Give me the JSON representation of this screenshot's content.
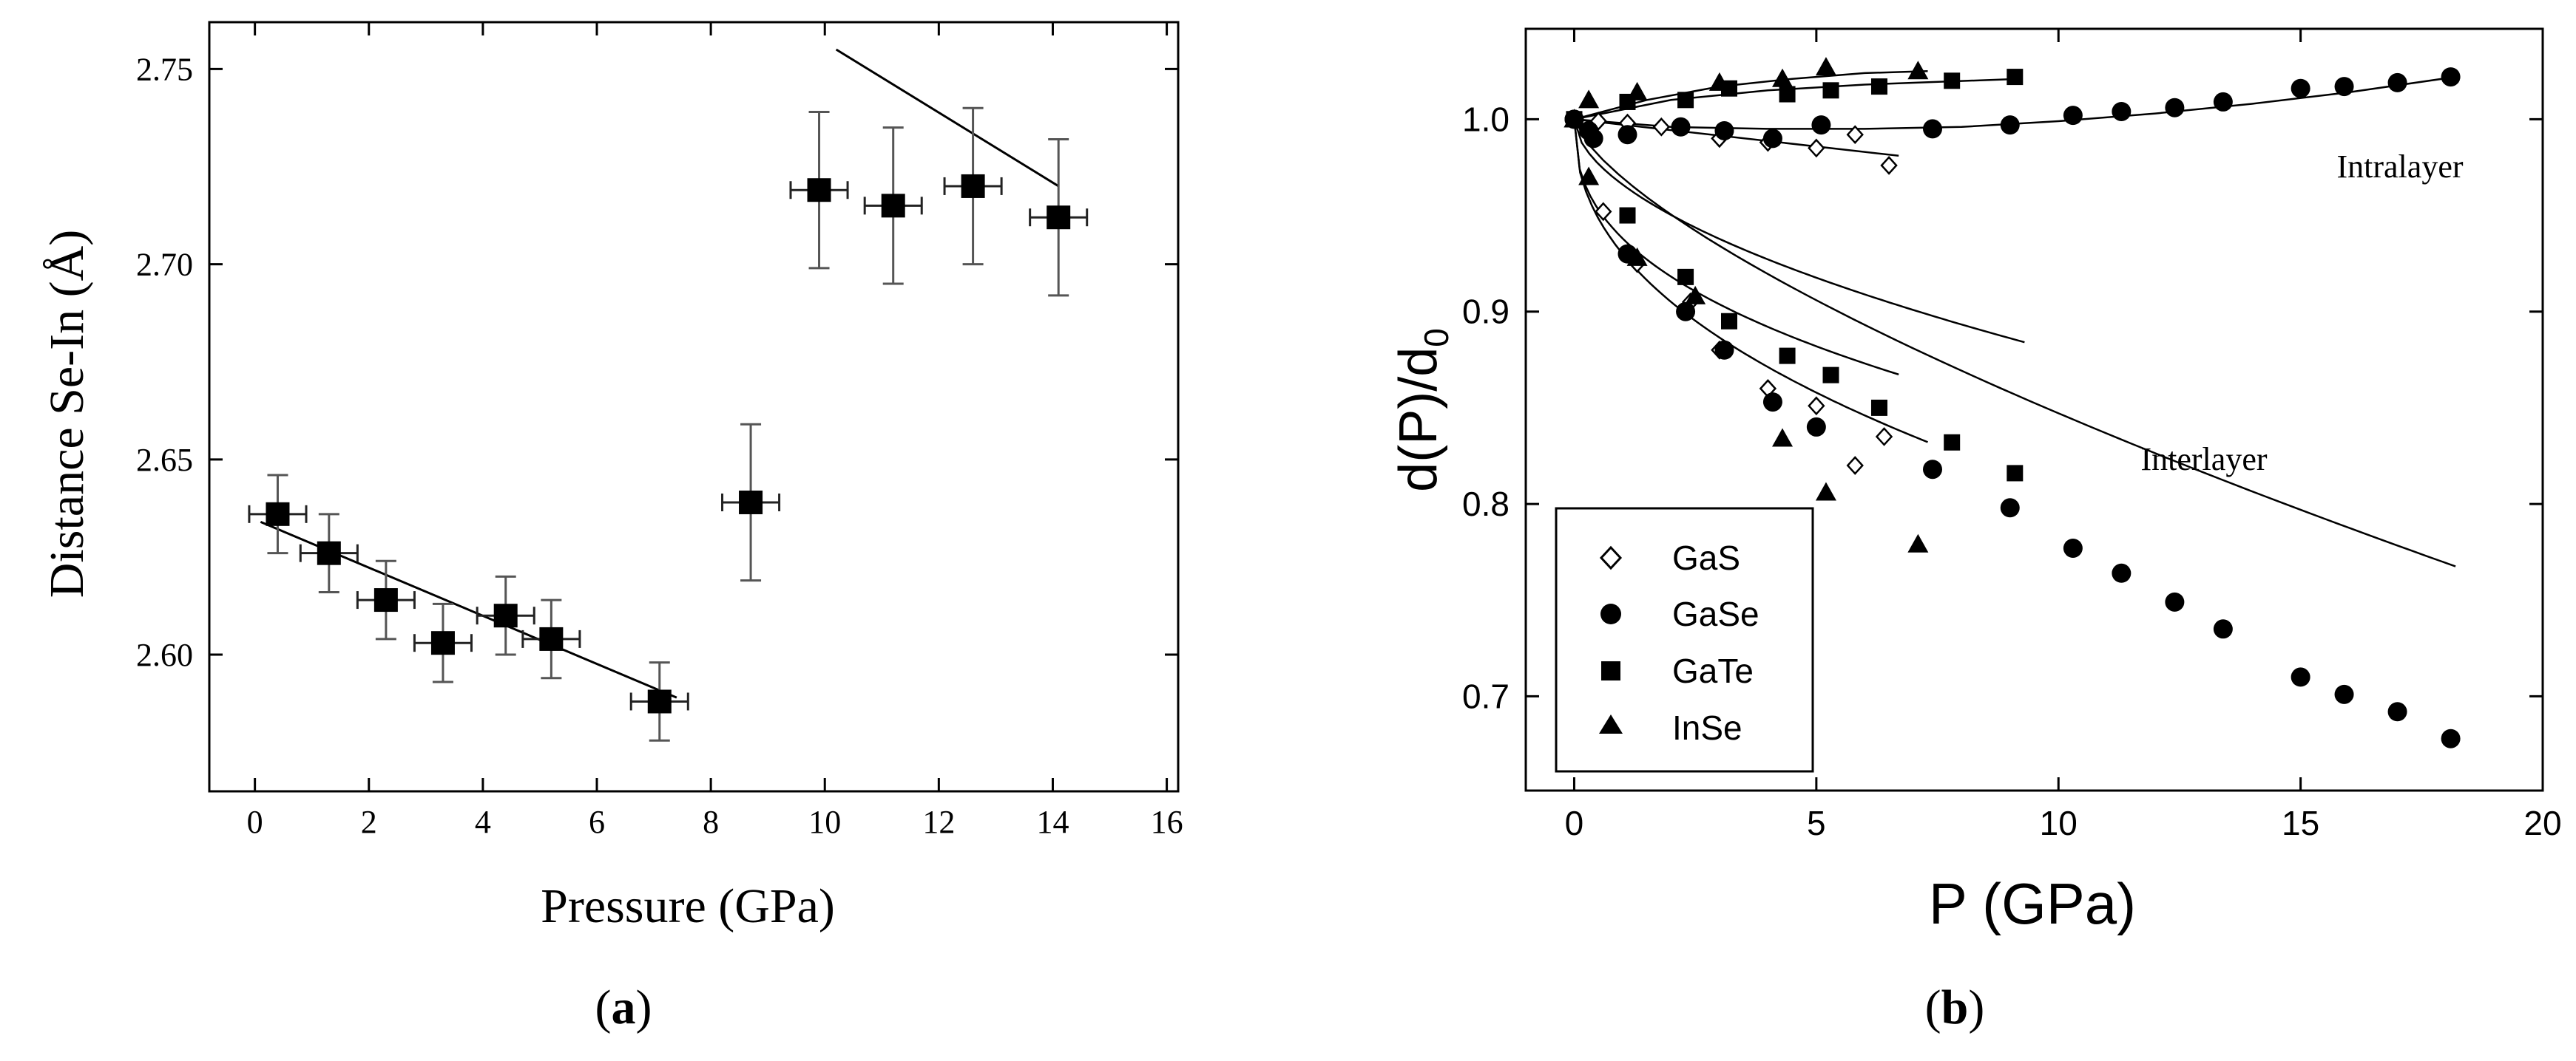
{
  "panels": [
    {
      "label": "a"
    },
    {
      "label": "b"
    }
  ],
  "chart_data": [
    {
      "type": "scatter",
      "panel": "a",
      "title": "",
      "xlabel": "Pressure (GPa)",
      "ylabel": "Distance Se-In (Å)",
      "xlim": [
        -0.8,
        16.2
      ],
      "ylim": [
        2.565,
        2.762
      ],
      "xticks": [
        0,
        2,
        4,
        6,
        8,
        10,
        12,
        14,
        16
      ],
      "xtick_labels": [
        "0",
        "2",
        "4",
        "6",
        "8",
        "10",
        "12",
        "14",
        "16"
      ],
      "yticks": [
        2.6,
        2.65,
        2.7,
        2.75
      ],
      "ytick_labels": [
        "2.60",
        "2.65",
        "2.70",
        "2.75"
      ],
      "grid": false,
      "series": [
        {
          "name": "Se-In distance",
          "marker": "square",
          "points": [
            {
              "x": 0.4,
              "y": 2.636,
              "xerr": 0.5,
              "yerr": 0.01
            },
            {
              "x": 1.3,
              "y": 2.626,
              "xerr": 0.5,
              "yerr": 0.01
            },
            {
              "x": 2.3,
              "y": 2.614,
              "xerr": 0.5,
              "yerr": 0.01
            },
            {
              "x": 3.3,
              "y": 2.603,
              "xerr": 0.5,
              "yerr": 0.01
            },
            {
              "x": 4.4,
              "y": 2.61,
              "xerr": 0.5,
              "yerr": 0.01
            },
            {
              "x": 5.2,
              "y": 2.604,
              "xerr": 0.5,
              "yerr": 0.01
            },
            {
              "x": 7.1,
              "y": 2.588,
              "xerr": 0.5,
              "yerr": 0.01
            },
            {
              "x": 8.7,
              "y": 2.639,
              "xerr": 0.5,
              "yerr": 0.02
            },
            {
              "x": 9.9,
              "y": 2.719,
              "xerr": 0.5,
              "yerr": 0.02
            },
            {
              "x": 11.2,
              "y": 2.715,
              "xerr": 0.5,
              "yerr": 0.02
            },
            {
              "x": 12.6,
              "y": 2.72,
              "xerr": 0.5,
              "yerr": 0.02
            },
            {
              "x": 14.1,
              "y": 2.712,
              "xerr": 0.5,
              "yerr": 0.02
            }
          ]
        }
      ],
      "fit_lines": [
        {
          "x": [
            0.1,
            7.4
          ],
          "y": [
            2.634,
            2.589
          ]
        },
        {
          "x": [
            10.2,
            14.1
          ],
          "y": [
            2.755,
            2.72
          ]
        }
      ]
    },
    {
      "type": "scatter",
      "panel": "b",
      "title": "",
      "xlabel": "P (GPa)",
      "ylabel_main": "d(P)/d",
      "ylabel_sub": "0",
      "xlim": [
        -1,
        20
      ],
      "ylim": [
        0.651,
        1.047
      ],
      "xticks": [
        0,
        5,
        10,
        15,
        20
      ],
      "xtick_labels": [
        "0",
        "5",
        "10",
        "15",
        "20"
      ],
      "yticks": [
        0.7,
        0.8,
        0.9,
        1.0
      ],
      "ytick_labels": [
        "0.7",
        "0.8",
        "0.9",
        "1.0"
      ],
      "grid": false,
      "legend_position": "bottom-left",
      "annotations": [
        {
          "text": "Intralayer",
          "x": 16.7,
          "y": 0.985
        },
        {
          "text": "Interlayer",
          "x": 12.2,
          "y": 0.824
        }
      ],
      "series": [
        {
          "name": "GaS",
          "marker": "diamond-open",
          "intralayer": {
            "x": [
              0,
              0.5,
              1.1,
              1.8,
              3.0,
              4.0,
              5.0,
              5.8,
              6.5
            ],
            "y": [
              1.0,
              0.999,
              0.998,
              0.996,
              0.99,
              0.988,
              0.985,
              0.992,
              0.976
            ]
          },
          "interlayer": {
            "x": [
              0,
              0.6,
              1.3,
              2.4,
              3.0,
              4.0,
              5.0,
              5.8,
              6.4
            ],
            "y": [
              1.0,
              0.952,
              0.925,
              0.905,
              0.88,
              0.86,
              0.851,
              0.82,
              0.835
            ]
          },
          "intralayer_fit": {
            "x": [
              0,
              6.7
            ],
            "y": [
              1.0,
              0.981
            ]
          },
          "interlayer_fit": {
            "a": 0.062,
            "b": 0.4,
            "xmax": 6.7
          }
        },
        {
          "name": "GaSe",
          "marker": "circle-filled",
          "intralayer": {
            "x": [
              0,
              0.3,
              1.1,
              2.2,
              3.1,
              4.1,
              5.1,
              7.4,
              9.0,
              10.3,
              11.3,
              12.4,
              13.4,
              15.0,
              15.9,
              17.0,
              18.1
            ],
            "y": [
              1.0,
              0.994,
              0.992,
              0.996,
              0.994,
              0.99,
              0.997,
              0.995,
              0.997,
              1.002,
              1.004,
              1.006,
              1.009,
              1.016,
              1.017,
              1.019,
              1.022
            ]
          },
          "interlayer": {
            "x": [
              0,
              0.4,
              1.1,
              2.3,
              3.1,
              4.1,
              5.0,
              7.4,
              9.0,
              10.3,
              11.3,
              12.4,
              13.4,
              15.0,
              15.9,
              17.0,
              18.1
            ],
            "y": [
              1.0,
              0.99,
              0.93,
              0.9,
              0.88,
              0.853,
              0.84,
              0.818,
              0.798,
              0.777,
              0.764,
              0.749,
              0.735,
              0.71,
              0.701,
              0.692,
              0.678
            ]
          },
          "intralayer_fit": {
            "x": [
              0,
              2.0,
              4.0,
              6.0,
              8.0,
              10.0,
              12.0,
              14.0,
              16.0,
              18.2
            ],
            "y": [
              1.0,
              0.996,
              0.995,
              0.995,
              0.996,
              0.999,
              1.003,
              1.008,
              1.014,
              1.022
            ]
          },
          "interlayer_fit": {
            "a": 0.0305,
            "b": 0.7,
            "xmax": 18.2
          }
        },
        {
          "name": "GaTe",
          "marker": "square-filled",
          "intralayer": {
            "x": [
              0,
              1.1,
              2.3,
              3.2,
              4.4,
              5.3,
              6.3,
              7.8,
              9.1
            ],
            "y": [
              1.0,
              1.009,
              1.01,
              1.016,
              1.013,
              1.015,
              1.017,
              1.02,
              1.022
            ]
          },
          "interlayer": {
            "x": [
              0,
              1.1,
              2.3,
              3.2,
              4.4,
              5.3,
              6.3,
              7.8,
              9.1
            ],
            "y": [
              1.0,
              0.95,
              0.918,
              0.895,
              0.877,
              0.867,
              0.85,
              0.832,
              0.816
            ]
          },
          "intralayer_fit": {
            "x": [
              0,
              2.0,
              4.0,
              6.0,
              9.2
            ],
            "y": [
              1.0,
              1.01,
              1.015,
              1.018,
              1.021
            ]
          },
          "interlayer_fit": {
            "a": 0.034,
            "b": 0.55,
            "xmax": 9.3
          }
        },
        {
          "name": "InSe",
          "marker": "triangle-filled",
          "intralayer": {
            "x": [
              0,
              0.3,
              1.3,
              3.0,
              4.3,
              5.2,
              7.1
            ],
            "y": [
              1.0,
              1.01,
              1.014,
              1.019,
              1.021,
              1.027,
              1.025
            ]
          },
          "interlayer": {
            "x": [
              0,
              0.3,
              1.3,
              2.5,
              4.3,
              5.2,
              7.1
            ],
            "y": [
              1.0,
              0.97,
              0.928,
              0.908,
              0.834,
              0.806,
              0.779
            ]
          },
          "intralayer_fit": {
            "x": [
              0,
              1.5,
              3.0,
              4.5,
              6.0,
              7.3
            ],
            "y": [
              1.0,
              1.01,
              1.017,
              1.021,
              1.024,
              1.025
            ]
          },
          "interlayer_fit": {
            "a": 0.07,
            "b": 0.44,
            "xmax": 7.3
          }
        }
      ]
    }
  ]
}
